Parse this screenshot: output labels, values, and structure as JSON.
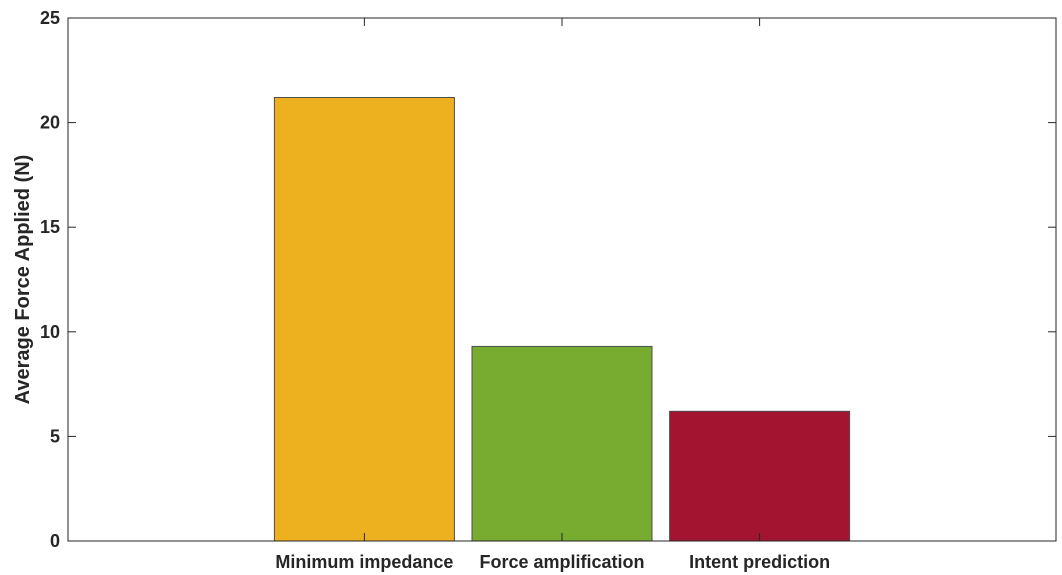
{
  "chart_data": {
    "type": "bar",
    "title": "",
    "xlabel": "",
    "ylabel": "Average Force Applied (N)",
    "categories": [
      "Minimum impedance",
      "Force amplification",
      "Intent prediction"
    ],
    "values": [
      21.2,
      9.3,
      6.2
    ],
    "colors": [
      "#EDB120",
      "#77AC30",
      "#A2142F"
    ],
    "ylim": [
      0,
      25
    ],
    "xlim": [
      0,
      5
    ],
    "x_positions": [
      1.5,
      2.5,
      3.5
    ],
    "yticks": [
      0,
      5,
      10,
      15,
      20,
      25
    ],
    "ytick_labels": [
      "0",
      "5",
      "10",
      "15",
      "20",
      "25"
    ],
    "grid": false,
    "legend": "none",
    "axis_color": "#262626",
    "bar_edge_color": "#4d4d4d"
  }
}
